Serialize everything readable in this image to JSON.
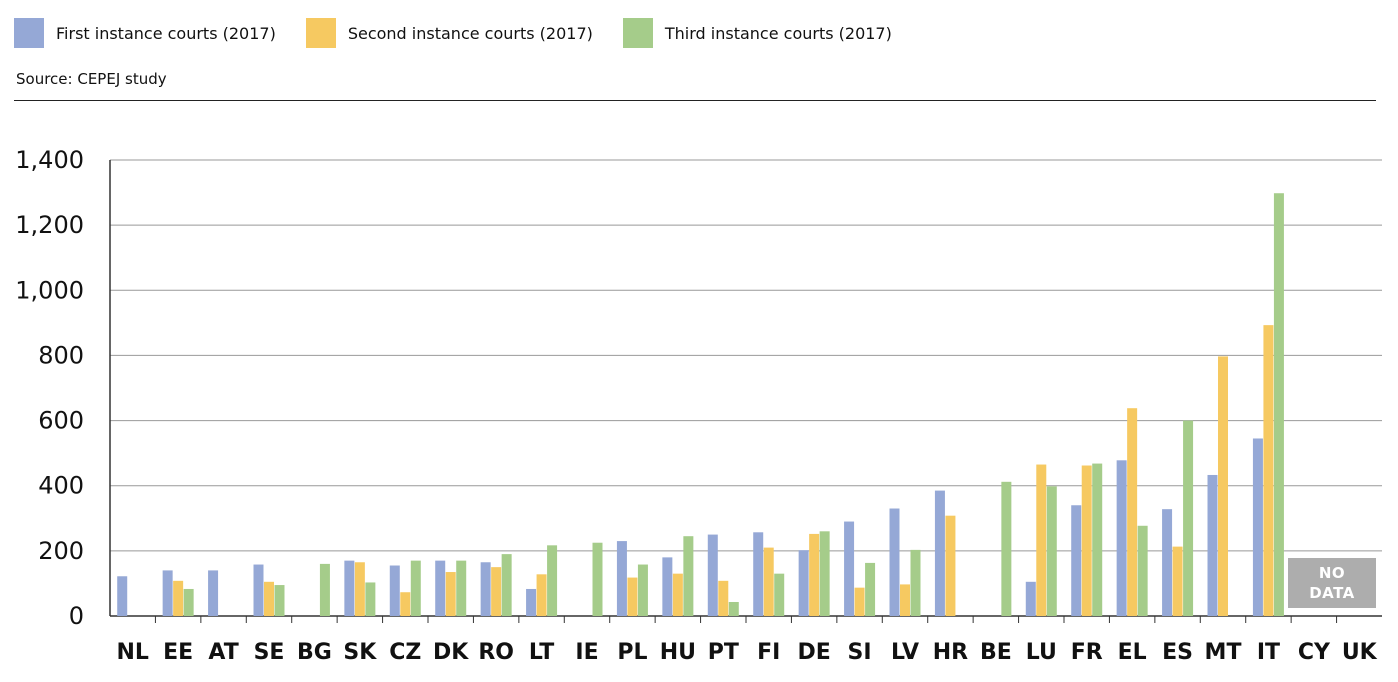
{
  "legend": [
    {
      "label": "First instance courts (2017)",
      "color": "#95a8d6"
    },
    {
      "label": "Second instance courts (2017)",
      "color": "#f6c961"
    },
    {
      "label": "Third instance courts (2017)",
      "color": "#a5cc8a"
    }
  ],
  "source": "Source: CEPEJ study",
  "nodata": {
    "line1": "NO",
    "line2": "DATA"
  },
  "chart_data": {
    "type": "bar",
    "categories": [
      "NL",
      "EE",
      "AT",
      "SE",
      "BG",
      "SK",
      "CZ",
      "DK",
      "RO",
      "LT",
      "IE",
      "PL",
      "HU",
      "PT",
      "FI",
      "DE",
      "SI",
      "LV",
      "HR",
      "BE",
      "LU",
      "FR",
      "EL",
      "ES",
      "MT",
      "IT",
      "CY",
      "UK"
    ],
    "series": [
      {
        "name": "First instance courts (2017)",
        "color": "#95a8d6",
        "values": [
          122,
          140,
          140,
          158,
          null,
          170,
          155,
          170,
          165,
          83,
          null,
          230,
          180,
          250,
          257,
          202,
          290,
          330,
          385,
          null,
          105,
          340,
          478,
          328,
          433,
          545,
          null,
          null
        ]
      },
      {
        "name": "Second instance courts (2017)",
        "color": "#f6c961",
        "values": [
          null,
          108,
          null,
          105,
          null,
          165,
          73,
          135,
          150,
          128,
          null,
          118,
          130,
          108,
          210,
          252,
          87,
          97,
          308,
          null,
          465,
          462,
          638,
          213,
          797,
          893,
          null,
          null
        ]
      },
      {
        "name": "Third instance courts (2017)",
        "color": "#a5cc8a",
        "values": [
          null,
          83,
          null,
          95,
          160,
          103,
          170,
          170,
          190,
          217,
          225,
          158,
          245,
          43,
          130,
          260,
          163,
          203,
          null,
          412,
          398,
          468,
          277,
          600,
          null,
          1298,
          null,
          null
        ]
      }
    ],
    "ylim": [
      0,
      1400
    ],
    "yticks": [
      0,
      200,
      400,
      600,
      800,
      1000,
      1200,
      1400
    ],
    "ytick_labels": [
      "0",
      "200",
      "400",
      "600",
      "800",
      "1,000",
      "1,200",
      "1,400"
    ],
    "grid": true,
    "legend_position": "top-left"
  }
}
